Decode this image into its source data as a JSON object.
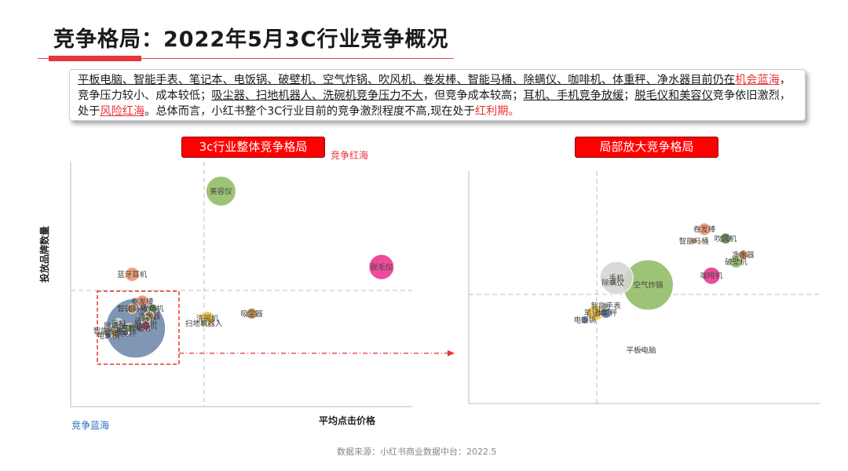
{
  "title": "竞争格局：2022年5月3C行业竞争概况",
  "summary": {
    "p1": "平板电脑、智能手表、笔记本、电饭锅、破壁机、空气炸锅、吹风机、卷发棒、智能马桶、除螨仪、咖啡机、体重秤、净水器目前仍在",
    "p2": "机会蓝海",
    "p3": "，竞争压力较小、成本较低；",
    "p4": "吸尘器、扫地机器人、洗碗机竞争压力不大",
    "p5": "，但竞争成本较高；",
    "p6": "耳机、手机竞争放缓",
    "p7": "；",
    "p8": "脱毛仪和美容仪",
    "p9": "竞争依旧激烈，处于",
    "p10": "风险红海",
    "p11": "。总体而言，小红书整个3C行业目前的竞争激烈程度不高,现在处于",
    "p12": "红利期。"
  },
  "left_chart_title": "3c行业整体竞争格局",
  "right_chart_title": "局部放大竞争格局",
  "source": "数据来源：小红书商业数据中台：2022.5",
  "colors": {
    "red": "#e8343a",
    "blue": "#2e6fbf"
  },
  "chart_data": [
    {
      "type": "scatter",
      "title": "3c行业整体竞争格局",
      "xlabel": "平均点击价格",
      "ylabel": "投放品牌数量",
      "grid": false,
      "quadrant_labels": {
        "top_right": "竞争红海",
        "bottom_left": "竞争蓝海"
      },
      "points": [
        {
          "name": "美容仪",
          "x": 4.4,
          "y": 8.8,
          "size": 19,
          "color": "#8fbc63"
        },
        {
          "name": "脱毛仪",
          "x": 9.1,
          "y": 5.7,
          "size": 16,
          "color": "#e8348c"
        },
        {
          "name": "蓝牙耳机",
          "x": 1.8,
          "y": 5.4,
          "size": 9,
          "color": "#f0926a"
        },
        {
          "name": "洗碗机",
          "x": 4.0,
          "y": 3.6,
          "size": 9,
          "color": "#f2c035"
        },
        {
          "name": "吸尘器",
          "x": 5.3,
          "y": 3.8,
          "size": 7,
          "color": "#b07a40"
        },
        {
          "name": "扫地机器人",
          "x": 3.9,
          "y": 3.4,
          "size": 4,
          "color": "#9a9a9a"
        },
        {
          "name": "平板电脑",
          "x": 1.9,
          "y": 3.2,
          "size": 38,
          "color": "#6e88aa"
        },
        {
          "name": "卷发棒",
          "x": 2.1,
          "y": 4.3,
          "size": 8,
          "color": "#f0926a"
        },
        {
          "name": "智能马桶",
          "x": 1.8,
          "y": 4.0,
          "size": 6,
          "color": "#b07a40"
        },
        {
          "name": "吹风机",
          "x": 2.4,
          "y": 4.0,
          "size": 6,
          "color": "#5a7f46"
        },
        {
          "name": "净水器",
          "x": 2.3,
          "y": 3.7,
          "size": 6,
          "color": "#b07a40"
        },
        {
          "name": "破壁机",
          "x": 2.2,
          "y": 3.5,
          "size": 6,
          "color": "#8fbc63"
        },
        {
          "name": "咖啡机",
          "x": 2.2,
          "y": 3.3,
          "size": 6,
          "color": "#e8348c"
        },
        {
          "name": "手机",
          "x": 1.4,
          "y": 3.4,
          "size": 6,
          "color": "#cccccc"
        },
        {
          "name": "除螨仪",
          "x": 1.3,
          "y": 3.3,
          "size": 5,
          "color": "#cccccc"
        },
        {
          "name": "空气炸锅",
          "x": 1.7,
          "y": 3.2,
          "size": 6,
          "color": "#8fbc63"
        },
        {
          "name": "智能手表",
          "x": 1.1,
          "y": 3.1,
          "size": 5,
          "color": "#9a9a9a"
        },
        {
          "name": "笔记本",
          "x": 1.3,
          "y": 3.0,
          "size": 5,
          "color": "#f2c035"
        },
        {
          "name": "体重秤",
          "x": 1.6,
          "y": 3.0,
          "size": 4,
          "color": "#5e7fa8"
        },
        {
          "name": "电饭锅",
          "x": 1.1,
          "y": 2.9,
          "size": 4,
          "color": "#5e7fa8"
        }
      ]
    },
    {
      "type": "scatter",
      "title": "局部放大竞争格局",
      "xlabel": "",
      "ylabel": "",
      "grid": false,
      "points": [
        {
          "name": "卷发棒",
          "x": 6.7,
          "y": 7.5,
          "size": 8,
          "color": "#f0926a"
        },
        {
          "name": "智能马桶",
          "x": 6.4,
          "y": 7.0,
          "size": 4,
          "color": "#b07a40"
        },
        {
          "name": "吹风机",
          "x": 7.3,
          "y": 7.1,
          "size": 7,
          "color": "#5a7f46"
        },
        {
          "name": "净水器",
          "x": 7.8,
          "y": 6.4,
          "size": 6,
          "color": "#b07a40"
        },
        {
          "name": "破壁机",
          "x": 7.6,
          "y": 6.1,
          "size": 8,
          "color": "#8fbc63"
        },
        {
          "name": "咖啡机",
          "x": 6.9,
          "y": 5.5,
          "size": 11,
          "color": "#e8348c"
        },
        {
          "name": "手机",
          "x": 4.2,
          "y": 5.4,
          "size": 21,
          "color": "#d4d4d4"
        },
        {
          "name": "除螨仪",
          "x": 4.1,
          "y": 5.2,
          "size": 4,
          "color": "#c9a96a"
        },
        {
          "name": "空气炸锅",
          "x": 5.1,
          "y": 5.1,
          "size": 32,
          "color": "#8fbc63"
        },
        {
          "name": "智能手表",
          "x": 3.9,
          "y": 4.2,
          "size": 4,
          "color": "#9a9a9a"
        },
        {
          "name": "笔记本",
          "x": 3.6,
          "y": 3.9,
          "size": 10,
          "color": "#f2c035"
        },
        {
          "name": "体重秤",
          "x": 3.9,
          "y": 3.9,
          "size": 7,
          "color": "#5e7fa8"
        },
        {
          "name": "电饭锅",
          "x": 3.3,
          "y": 3.6,
          "size": 5,
          "color": "#5e7fa8"
        },
        {
          "name": "平板电脑",
          "x": 4.9,
          "y": 2.3,
          "size": 2,
          "color": "#9a9a9a"
        }
      ]
    }
  ]
}
